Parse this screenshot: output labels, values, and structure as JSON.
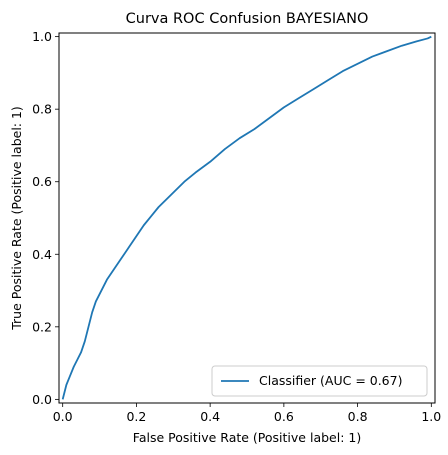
{
  "chart_data": {
    "type": "line",
    "title": "Curva ROC Confusion BAYESIANO",
    "xlabel": "False Positive Rate (Positive label: 1)",
    "ylabel": "True Positive Rate (Positive label: 1)",
    "xlim": [
      -0.01,
      1.01
    ],
    "ylim": [
      -0.01,
      1.01
    ],
    "xticks": [
      0.0,
      0.2,
      0.4,
      0.6,
      0.8,
      1.0
    ],
    "xtick_labels": [
      "0.0",
      "0.2",
      "0.4",
      "0.6",
      "0.8",
      "1.0"
    ],
    "yticks": [
      0.0,
      0.2,
      0.4,
      0.6,
      0.8,
      1.0
    ],
    "ytick_labels": [
      "0.0",
      "0.2",
      "0.4",
      "0.6",
      "0.8",
      "1.0"
    ],
    "grid": false,
    "legend_position": "lower right",
    "series": [
      {
        "name": "Classifier (AUC = 0.67)",
        "color": "#1f77b4",
        "x": [
          0.0,
          0.005,
          0.01,
          0.02,
          0.03,
          0.04,
          0.05,
          0.06,
          0.07,
          0.08,
          0.09,
          0.1,
          0.11,
          0.12,
          0.14,
          0.16,
          0.18,
          0.2,
          0.22,
          0.24,
          0.26,
          0.28,
          0.3,
          0.33,
          0.36,
          0.4,
          0.44,
          0.48,
          0.52,
          0.56,
          0.6,
          0.64,
          0.68,
          0.72,
          0.76,
          0.8,
          0.84,
          0.88,
          0.92,
          0.96,
          0.99,
          1.0
        ],
        "y": [
          0.0,
          0.02,
          0.04,
          0.065,
          0.09,
          0.11,
          0.13,
          0.16,
          0.2,
          0.24,
          0.27,
          0.29,
          0.31,
          0.33,
          0.36,
          0.39,
          0.42,
          0.45,
          0.48,
          0.505,
          0.53,
          0.55,
          0.57,
          0.6,
          0.625,
          0.655,
          0.69,
          0.72,
          0.745,
          0.775,
          0.805,
          0.83,
          0.855,
          0.88,
          0.905,
          0.925,
          0.945,
          0.96,
          0.975,
          0.987,
          0.995,
          1.0
        ]
      }
    ]
  }
}
